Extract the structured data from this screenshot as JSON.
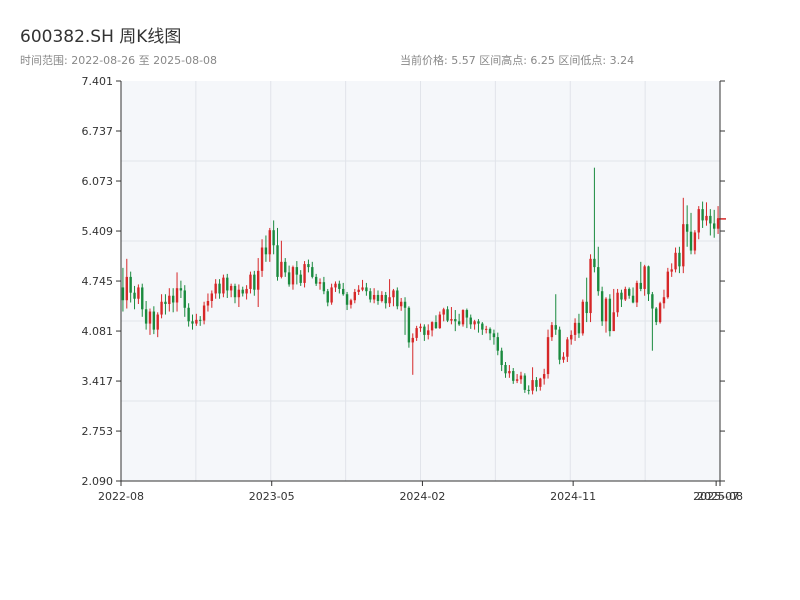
{
  "header": {
    "title": "600382.SH 周K线图",
    "range_label": "时间范围: 2022-08-26 至 2025-08-08",
    "stats": "当前价格: 5.57   区间高点: 6.25   区间低点: 3.24"
  },
  "colors": {
    "up": "#d62728",
    "down": "#1a8a3e",
    "axis": "#333333",
    "grid": "#e1e4ea",
    "plot_bg": "#f5f7fa",
    "price_line": "#d62728"
  },
  "chart_data": {
    "type": "candlestick",
    "ylim": [
      2.09,
      7.401
    ],
    "yticks": [
      "7.401",
      "6.737",
      "6.073",
      "5.409",
      "4.745",
      "4.081",
      "3.417",
      "2.753",
      "2.090"
    ],
    "xticks": [
      {
        "week": 0,
        "label": "2022-08"
      },
      {
        "week": 39,
        "label": "2023-05"
      },
      {
        "week": 78,
        "label": "2024-02"
      },
      {
        "week": 117,
        "label": "2024-11"
      },
      {
        "week": 154,
        "label": "2025-07"
      },
      {
        "week": 155,
        "label": "2025-08"
      }
    ],
    "current_price": 5.57,
    "high": 6.25,
    "low": 3.24,
    "candles": [
      [
        4.66,
        4.49,
        4.92,
        4.34
      ],
      [
        4.49,
        4.8,
        5.04,
        4.38
      ],
      [
        4.8,
        4.59,
        4.87,
        4.46
      ],
      [
        4.59,
        4.51,
        4.68,
        4.37
      ],
      [
        4.51,
        4.66,
        4.7,
        4.44
      ],
      [
        4.66,
        4.37,
        4.71,
        4.27
      ],
      [
        4.37,
        4.18,
        4.48,
        4.1
      ],
      [
        4.18,
        4.34,
        4.38,
        4.03
      ],
      [
        4.34,
        4.1,
        4.41,
        4.04
      ],
      [
        4.1,
        4.3,
        4.33,
        4.0
      ],
      [
        4.3,
        4.47,
        4.57,
        4.25
      ],
      [
        4.47,
        4.44,
        4.57,
        4.3
      ],
      [
        4.44,
        4.55,
        4.65,
        4.34
      ],
      [
        4.55,
        4.46,
        4.65,
        4.33
      ],
      [
        4.46,
        4.65,
        4.86,
        4.34
      ],
      [
        4.65,
        4.62,
        4.75,
        4.52
      ],
      [
        4.62,
        4.39,
        4.69,
        4.27
      ],
      [
        4.39,
        4.21,
        4.45,
        4.14
      ],
      [
        4.21,
        4.18,
        4.3,
        4.1
      ],
      [
        4.18,
        4.23,
        4.31,
        4.15
      ],
      [
        4.23,
        4.22,
        4.28,
        4.15
      ],
      [
        4.22,
        4.42,
        4.47,
        4.17
      ],
      [
        4.42,
        4.48,
        4.58,
        4.34
      ],
      [
        4.48,
        4.58,
        4.62,
        4.39
      ],
      [
        4.58,
        4.71,
        4.77,
        4.51
      ],
      [
        4.71,
        4.58,
        4.77,
        4.51
      ],
      [
        4.58,
        4.79,
        4.83,
        4.53
      ],
      [
        4.79,
        4.62,
        4.84,
        4.52
      ],
      [
        4.62,
        4.68,
        4.71,
        4.53
      ],
      [
        4.68,
        4.53,
        4.71,
        4.45
      ],
      [
        4.53,
        4.63,
        4.7,
        4.4
      ],
      [
        4.63,
        4.58,
        4.67,
        4.54
      ],
      [
        4.58,
        4.64,
        4.69,
        4.5
      ],
      [
        4.64,
        4.83,
        4.87,
        4.58
      ],
      [
        4.83,
        4.63,
        4.88,
        4.55
      ],
      [
        4.63,
        4.88,
        5.05,
        4.4
      ],
      [
        4.88,
        5.19,
        5.3,
        4.8
      ],
      [
        5.19,
        5.1,
        5.35,
        5.0
      ],
      [
        5.1,
        5.42,
        5.45,
        5.0
      ],
      [
        5.42,
        5.22,
        5.55,
        5.1
      ],
      [
        5.22,
        4.8,
        5.45,
        4.75
      ],
      [
        4.8,
        5.0,
        5.28,
        4.78
      ],
      [
        5.0,
        4.86,
        5.05,
        4.8
      ],
      [
        4.86,
        4.7,
        4.95,
        4.67
      ],
      [
        4.7,
        4.93,
        4.95,
        4.63
      ],
      [
        4.93,
        4.83,
        5.01,
        4.7
      ],
      [
        4.83,
        4.72,
        4.89,
        4.68
      ],
      [
        4.72,
        4.97,
        5.01,
        4.66
      ],
      [
        4.97,
        4.93,
        5.03,
        4.86
      ],
      [
        4.93,
        4.8,
        5.0,
        4.78
      ],
      [
        4.8,
        4.71,
        4.84,
        4.68
      ],
      [
        4.71,
        4.73,
        4.78,
        4.63
      ],
      [
        4.73,
        4.61,
        4.8,
        4.57
      ],
      [
        4.61,
        4.46,
        4.64,
        4.41
      ],
      [
        4.46,
        4.66,
        4.71,
        4.43
      ],
      [
        4.66,
        4.71,
        4.74,
        4.6
      ],
      [
        4.71,
        4.64,
        4.75,
        4.58
      ],
      [
        4.64,
        4.57,
        4.72,
        4.55
      ],
      [
        4.57,
        4.43,
        4.6,
        4.36
      ],
      [
        4.43,
        4.49,
        4.51,
        4.38
      ],
      [
        4.49,
        4.6,
        4.64,
        4.45
      ],
      [
        4.6,
        4.63,
        4.69,
        4.56
      ],
      [
        4.63,
        4.66,
        4.76,
        4.61
      ],
      [
        4.66,
        4.61,
        4.72,
        4.55
      ],
      [
        4.61,
        4.5,
        4.65,
        4.46
      ],
      [
        4.5,
        4.56,
        4.65,
        4.45
      ],
      [
        4.56,
        4.48,
        4.62,
        4.43
      ],
      [
        4.48,
        4.56,
        4.61,
        4.46
      ],
      [
        4.56,
        4.45,
        4.6,
        4.38
      ],
      [
        4.45,
        4.53,
        4.77,
        4.4
      ],
      [
        4.53,
        4.62,
        4.64,
        4.41
      ],
      [
        4.62,
        4.41,
        4.66,
        4.37
      ],
      [
        4.41,
        4.47,
        4.52,
        4.35
      ],
      [
        4.47,
        4.39,
        4.53,
        4.03
      ],
      [
        4.39,
        3.93,
        4.41,
        3.86
      ],
      [
        3.93,
        3.99,
        4.05,
        3.5
      ],
      [
        3.99,
        4.12,
        4.15,
        3.95
      ],
      [
        4.12,
        4.14,
        4.18,
        4.07
      ],
      [
        4.14,
        4.03,
        4.17,
        3.95
      ],
      [
        4.03,
        4.09,
        4.17,
        3.97
      ],
      [
        4.09,
        4.2,
        4.21,
        4.01
      ],
      [
        4.2,
        4.12,
        4.29,
        4.11
      ],
      [
        4.12,
        4.3,
        4.34,
        4.11
      ],
      [
        4.3,
        4.37,
        4.39,
        4.21
      ],
      [
        4.37,
        4.22,
        4.41,
        4.2
      ],
      [
        4.22,
        4.24,
        4.4,
        4.17
      ],
      [
        4.24,
        4.21,
        4.36,
        4.08
      ],
      [
        4.21,
        4.17,
        4.31,
        4.15
      ],
      [
        4.17,
        4.36,
        4.37,
        4.14
      ],
      [
        4.36,
        4.26,
        4.38,
        4.12
      ],
      [
        4.26,
        4.17,
        4.3,
        4.11
      ],
      [
        4.17,
        4.21,
        4.23,
        4.1
      ],
      [
        4.21,
        4.18,
        4.24,
        4.06
      ],
      [
        4.18,
        4.1,
        4.2,
        4.03
      ],
      [
        4.1,
        4.11,
        4.15,
        4.05
      ],
      [
        4.11,
        4.05,
        4.13,
        3.96
      ],
      [
        4.05,
        4.0,
        4.1,
        3.9
      ],
      [
        4.0,
        3.82,
        4.06,
        3.76
      ],
      [
        3.82,
        3.63,
        3.86,
        3.55
      ],
      [
        3.63,
        3.52,
        3.67,
        3.46
      ],
      [
        3.52,
        3.55,
        3.63,
        3.46
      ],
      [
        3.55,
        3.42,
        3.59,
        3.38
      ],
      [
        3.42,
        3.44,
        3.51,
        3.39
      ],
      [
        3.44,
        3.49,
        3.54,
        3.38
      ],
      [
        3.49,
        3.3,
        3.52,
        3.26
      ],
      [
        3.3,
        3.29,
        3.36,
        3.24
      ],
      [
        3.29,
        3.43,
        3.6,
        3.24
      ],
      [
        3.43,
        3.34,
        3.47,
        3.28
      ],
      [
        3.34,
        3.45,
        3.46,
        3.29
      ],
      [
        3.45,
        3.51,
        3.58,
        3.37
      ],
      [
        3.51,
        4.0,
        4.1,
        3.45
      ],
      [
        4.0,
        4.16,
        4.2,
        3.95
      ],
      [
        4.16,
        4.1,
        4.57,
        4.03
      ],
      [
        4.1,
        3.7,
        4.14,
        3.64
      ],
      [
        3.7,
        3.74,
        3.8,
        3.66
      ],
      [
        3.74,
        3.97,
        4.0,
        3.67
      ],
      [
        3.97,
        4.03,
        4.09,
        3.9
      ],
      [
        4.03,
        4.19,
        4.25,
        3.95
      ],
      [
        4.19,
        4.05,
        4.31,
        3.99
      ],
      [
        4.05,
        4.47,
        4.5,
        4.02
      ],
      [
        4.47,
        4.32,
        4.79,
        4.2
      ],
      [
        4.32,
        5.04,
        5.1,
        4.2
      ],
      [
        5.04,
        4.93,
        6.25,
        4.86
      ],
      [
        4.93,
        4.61,
        5.2,
        4.55
      ],
      [
        4.61,
        4.21,
        4.67,
        4.15
      ],
      [
        4.21,
        4.51,
        4.53,
        4.06
      ],
      [
        4.51,
        4.08,
        4.57,
        4.01
      ],
      [
        4.08,
        4.33,
        4.64,
        4.25
      ],
      [
        4.33,
        4.59,
        4.64,
        4.27
      ],
      [
        4.59,
        4.5,
        4.63,
        4.4
      ],
      [
        4.5,
        4.64,
        4.67,
        4.48
      ],
      [
        4.64,
        4.55,
        4.66,
        4.51
      ],
      [
        4.55,
        4.46,
        4.66,
        4.45
      ],
      [
        4.46,
        4.72,
        4.75,
        4.4
      ],
      [
        4.72,
        4.64,
        5.0,
        4.61
      ],
      [
        4.64,
        4.94,
        4.96,
        4.55
      ],
      [
        4.94,
        4.57,
        4.95,
        4.48
      ],
      [
        4.57,
        4.38,
        4.6,
        3.82
      ],
      [
        4.38,
        4.2,
        4.4,
        4.16
      ],
      [
        4.2,
        4.45,
        4.47,
        4.18
      ],
      [
        4.45,
        4.53,
        4.63,
        4.38
      ],
      [
        4.53,
        4.87,
        4.92,
        4.51
      ],
      [
        4.87,
        4.9,
        4.98,
        4.8
      ],
      [
        4.9,
        5.12,
        5.19,
        4.86
      ],
      [
        5.12,
        4.94,
        5.2,
        4.85
      ],
      [
        4.94,
        5.5,
        5.85,
        4.85
      ],
      [
        5.5,
        5.4,
        5.75,
        5.2
      ],
      [
        5.4,
        5.15,
        5.65,
        5.1
      ],
      [
        5.15,
        5.39,
        5.42,
        5.1
      ],
      [
        5.39,
        5.7,
        5.74,
        5.3
      ],
      [
        5.7,
        5.55,
        5.8,
        5.45
      ],
      [
        5.55,
        5.61,
        5.79,
        5.48
      ],
      [
        5.61,
        5.51,
        5.7,
        5.35
      ],
      [
        5.51,
        5.44,
        5.69,
        5.32
      ],
      [
        5.44,
        5.57,
        5.74,
        5.37
      ]
    ]
  }
}
